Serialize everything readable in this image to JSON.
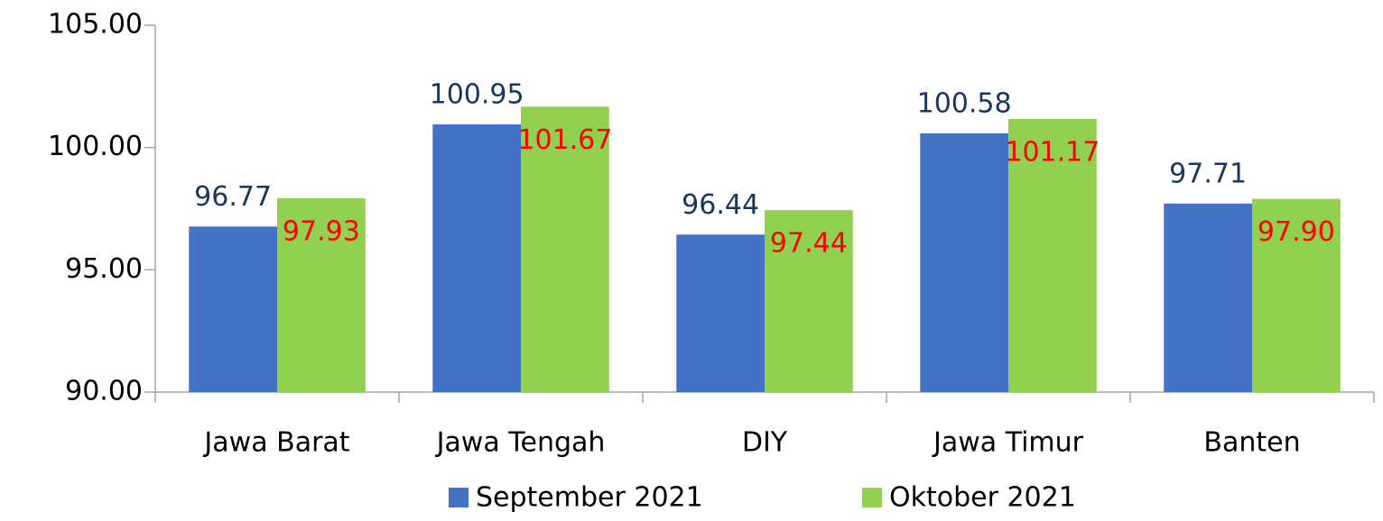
{
  "chart_data": {
    "type": "bar",
    "categories": [
      "Jawa Barat",
      "Jawa Tengah",
      "DIY",
      "Jawa Timur",
      "Banten"
    ],
    "series": [
      {
        "name": "September 2021",
        "color": "#4472c4",
        "label_color": "#17375e",
        "values": [
          96.77,
          100.95,
          96.44,
          100.58,
          97.71
        ],
        "value_labels": [
          "96.77",
          "100.95",
          "96.44",
          "100.58",
          "97.71"
        ]
      },
      {
        "name": "Oktober 2021",
        "color": "#92d050",
        "label_color": "#ff0000",
        "values": [
          97.93,
          101.67,
          97.44,
          101.17,
          97.9
        ],
        "value_labels": [
          "97.93",
          "101.67",
          "97.44",
          "101.17",
          "97.90"
        ]
      }
    ],
    "ylim": [
      90,
      105
    ],
    "yticks": [
      {
        "value": 90,
        "label": "90.00"
      },
      {
        "value": 95,
        "label": "95.00"
      },
      {
        "value": 100,
        "label": "100.00"
      },
      {
        "value": 105,
        "label": "105.00"
      }
    ],
    "grid": false,
    "legend": "bottom"
  }
}
